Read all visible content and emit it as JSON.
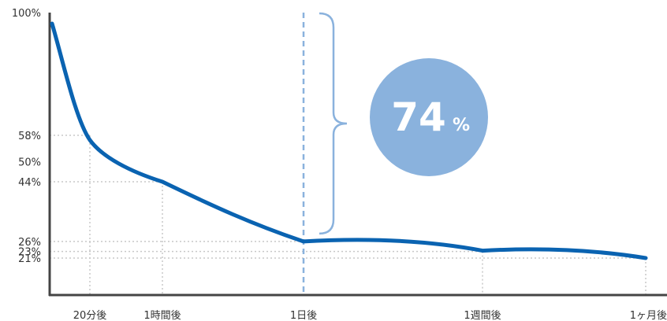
{
  "colors": {
    "curve": "#0a63b1",
    "axis": "#444444",
    "grid": "#c8c8c8",
    "marker": "#8ab2dd",
    "bubble": "#8ab2dd",
    "bubble_text": "#ffffff"
  },
  "annotation": {
    "value": "74",
    "unit": "%"
  },
  "chart_data": {
    "type": "line",
    "title": "",
    "xlabel": "",
    "ylabel": "",
    "ylim": [
      0,
      100
    ],
    "grid": "dotted guide lines at labeled points",
    "y_ticks": [
      {
        "label": "100%",
        "value": 100
      },
      {
        "label": "58%",
        "value": 58
      },
      {
        "label": "50%",
        "value": 50
      },
      {
        "label": "44%",
        "value": 44
      },
      {
        "label": "26%",
        "value": 26
      },
      {
        "label": "23%",
        "value": 23
      },
      {
        "label": "21%",
        "value": 21
      }
    ],
    "x_ticks": [
      "20分後",
      "1時間後",
      "1日後",
      "1週間後",
      "1ヶ月後"
    ],
    "series": [
      {
        "values": [
          {
            "x": "0",
            "y": 100
          },
          {
            "x": "20分後",
            "y": 58
          },
          {
            "x": "1時間後",
            "y": 44
          },
          {
            "x": "1日後",
            "y": 26
          },
          {
            "x": "1週間後",
            "y": 23
          },
          {
            "x": "1ヶ月後",
            "y": 21
          }
        ]
      }
    ],
    "marker_at": "1日後"
  }
}
